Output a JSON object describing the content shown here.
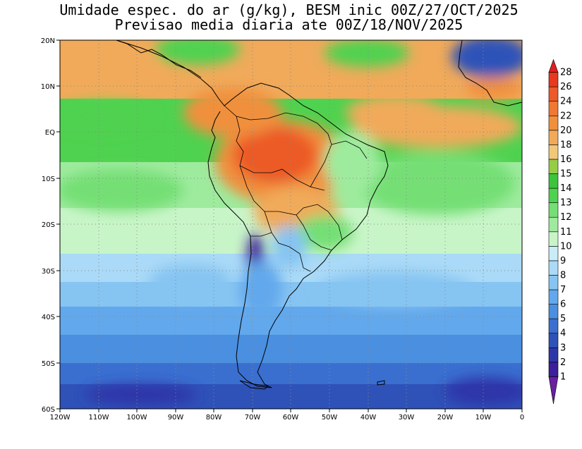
{
  "title": {
    "line1": "Umidade espec. do ar (g/kg), BESM inic 00Z/27/OCT/2025",
    "line2": "Previsao media diaria ate 00Z/18/NOV/2025"
  },
  "map": {
    "region": "South America and South Atlantic",
    "lon_range": [
      -120,
      0
    ],
    "lat_range": [
      -60,
      20
    ],
    "grid": "dotted, every 10 degrees",
    "lat_labels": [
      "20N",
      "10N",
      "EQ",
      "10S",
      "20S",
      "30S",
      "40S",
      "50S",
      "60S"
    ],
    "lon_labels": [
      "120W",
      "110W",
      "100W",
      "90W",
      "80W",
      "70W",
      "60W",
      "50W",
      "40W",
      "30W",
      "20W",
      "10W",
      "0"
    ]
  },
  "colorbar": {
    "labels": [
      "1",
      "2",
      "3",
      "4",
      "5",
      "6",
      "7",
      "8",
      "9",
      "10",
      "11",
      "12",
      "13",
      "14",
      "15",
      "16",
      "18",
      "20",
      "22",
      "24",
      "26",
      "28"
    ],
    "colors": [
      "#6a1fa0",
      "#3b1f9c",
      "#2d36a8",
      "#2f52b8",
      "#3a6fd0",
      "#4a8fe0",
      "#62a8ec",
      "#86c4f2",
      "#aadaf7",
      "#c8ecf8",
      "#c8f5c8",
      "#9eeb9e",
      "#74df74",
      "#4fd24f",
      "#3cc43c",
      "#96cc46",
      "#f0c878",
      "#f0aa5a",
      "#f0903c",
      "#f07832",
      "#ec5a28",
      "#e8381e",
      "#e01e1e"
    ],
    "extends": "both ends (triangles)"
  }
}
